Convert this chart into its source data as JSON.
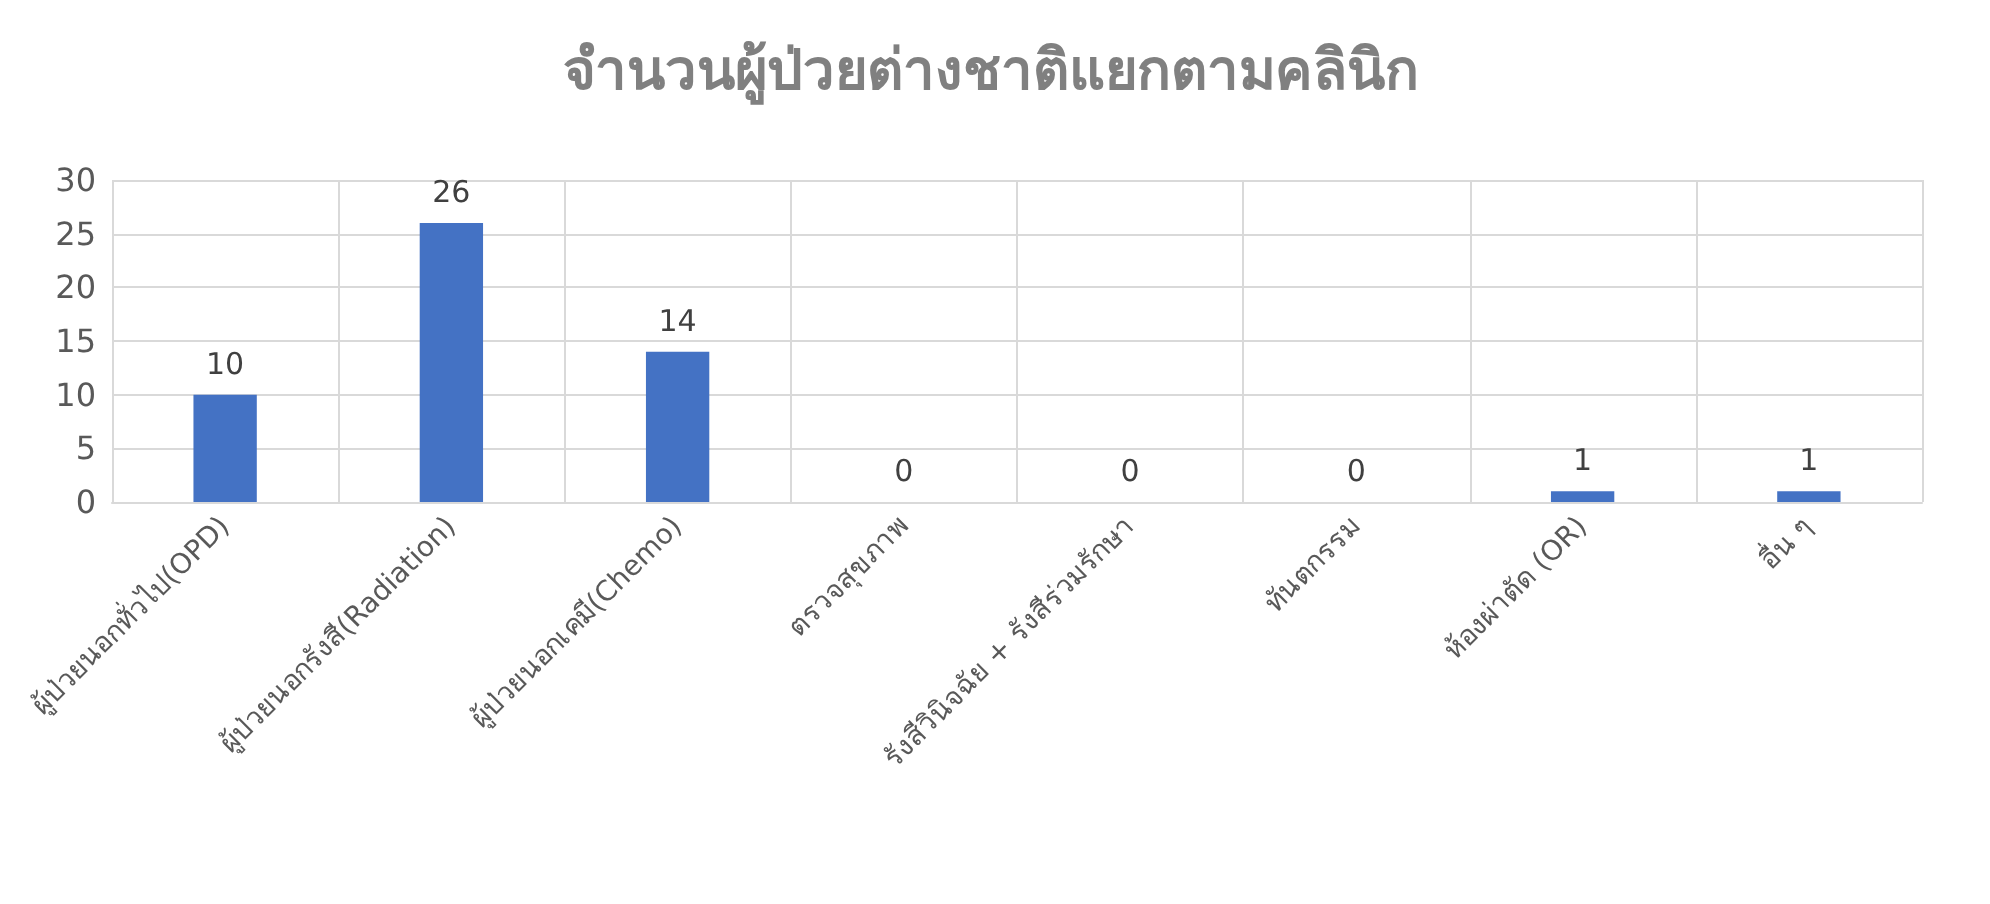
{
  "chart_data": {
    "type": "bar",
    "title": "จำนวนผู้ป่วยต่างชาติแยกตามคลินิก",
    "categories": [
      "ผู้ป่วยนอกทั่วไป(OPD)",
      "ผู้ป่วยนอกรังสี(Radiation)",
      "ผู้ป่วยนอกเคมี(Chemo)",
      "ตรวจสุขภาพ",
      "รังสีวินิจฉัย + รังสีร่วมรักษา",
      "ทันตกรรม",
      "ห้องผ่าตัด (OR)",
      "อื่น ๆ"
    ],
    "values": [
      10,
      26,
      14,
      0,
      0,
      0,
      1,
      1
    ],
    "color": "#4472c4",
    "ylim": [
      0,
      30
    ],
    "yticks": [
      0,
      5,
      10,
      15,
      20,
      25,
      30
    ],
    "grid": true,
    "data_labels": true
  }
}
